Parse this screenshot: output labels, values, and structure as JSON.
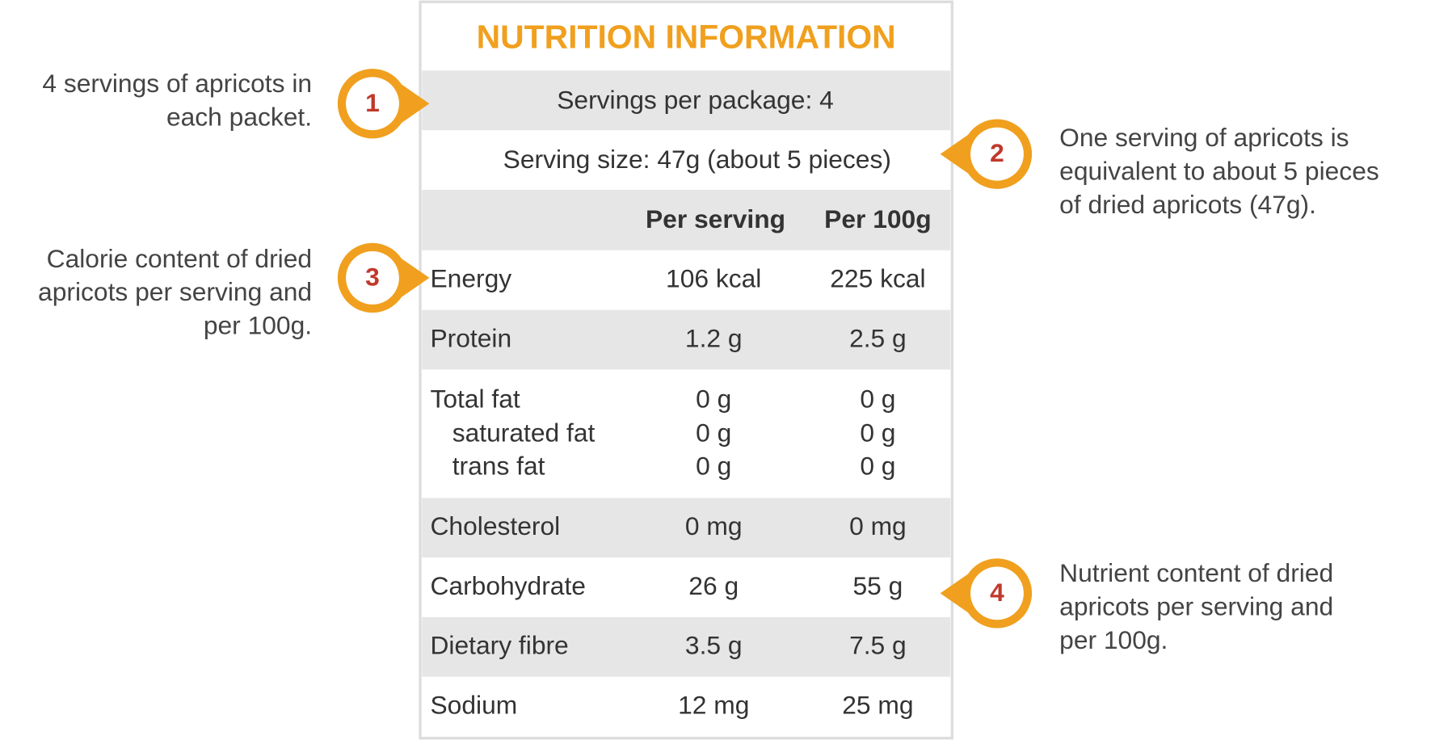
{
  "title": "NUTRITION INFORMATION",
  "servings_per_package": "Servings per package: 4",
  "serving_size": "Serving size: 47g (about 5 pieces)",
  "table": {
    "header": [
      "Per serving",
      "Per 100g"
    ],
    "rows": [
      [
        "Energy",
        "106 kcal",
        "225 kcal"
      ],
      [
        "Protein",
        "1.2 g",
        "2.5 g"
      ],
      [
        "Total fat",
        "0 g",
        "0 g"
      ],
      [
        "saturated fat",
        "0 g",
        "0 g"
      ],
      [
        "trans fat",
        "0 g",
        "0 g"
      ],
      [
        "Cholesterol",
        "0 mg",
        "0 mg"
      ],
      [
        "Carbohydrate",
        "26 g",
        "55 g"
      ],
      [
        "Dietary fibre",
        "3.5 g",
        "7.5 g"
      ],
      [
        "Sodium",
        "12 mg",
        "25 mg"
      ]
    ]
  },
  "callouts": [
    {
      "number": "1",
      "text": [
        "4 servings of apricots in",
        "each packet."
      ]
    },
    {
      "number": "2",
      "text": [
        "One serving of apricots is",
        "equivalent to about 5 pieces",
        "of dried apricots (47g)."
      ]
    },
    {
      "number": "3",
      "text": [
        "Calorie content of dried",
        "apricots per serving and",
        "per 100g."
      ]
    },
    {
      "number": "4",
      "text": [
        "Nutrient content of dried",
        "apricots per serving and",
        "per 100g."
      ]
    }
  ]
}
